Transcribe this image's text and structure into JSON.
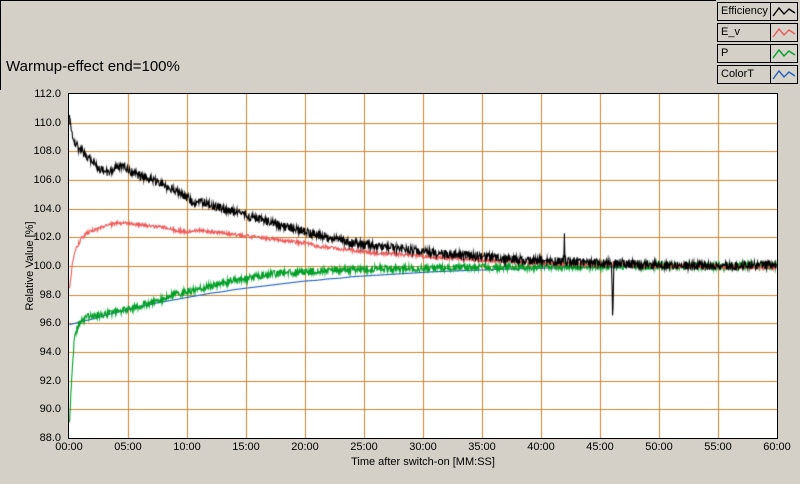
{
  "title": "Warmup-effect end=100%",
  "colors": {
    "background": "#d4d0c8",
    "plot_background": "#ffffff",
    "grid": "#c9862f",
    "axis_text": "#000000",
    "border": "#000000"
  },
  "legend": {
    "items": [
      {
        "label": "Efficiency",
        "color": "#000000"
      },
      {
        "label": "E_v",
        "color": "#ef5a5a"
      },
      {
        "label": "P",
        "color": "#00a028"
      },
      {
        "label": "ColorT",
        "color": "#2060c0"
      }
    ]
  },
  "chart_data": {
    "type": "line",
    "title": "Warmup-effect end=100%",
    "xlabel": "Time after switch-on [MM:SS]",
    "ylabel": "Relative Value [%]",
    "x_unit": "minutes",
    "xlim": [
      0,
      60
    ],
    "ylim": [
      88,
      112
    ],
    "grid": true,
    "legend_position": "top-right",
    "x_ticks": [
      "00:00",
      "05:00",
      "10:00",
      "15:00",
      "20:00",
      "25:00",
      "30:00",
      "35:00",
      "40:00",
      "45:00",
      "50:00",
      "55:00",
      "60:00"
    ],
    "y_ticks": [
      "112.0",
      "110.0",
      "108.0",
      "106.0",
      "104.0",
      "102.0",
      "100.0",
      "98.0",
      "96.0",
      "94.0",
      "92.0",
      "90.0",
      "88.0"
    ],
    "series": [
      {
        "name": "Efficiency",
        "color": "#000000",
        "noise": 0.3,
        "points": [
          [
            0,
            110.3
          ],
          [
            0.2,
            109.3
          ],
          [
            0.5,
            108.6
          ],
          [
            0.8,
            108.2
          ],
          [
            1.2,
            107.9
          ],
          [
            1.7,
            107.5
          ],
          [
            2.2,
            107.0
          ],
          [
            2.7,
            106.7
          ],
          [
            3.2,
            106.6
          ],
          [
            3.7,
            106.8
          ],
          [
            4.2,
            107.0
          ],
          [
            4.7,
            106.9
          ],
          [
            5.2,
            106.6
          ],
          [
            6,
            106.3
          ],
          [
            7,
            106.0
          ],
          [
            8,
            105.7
          ],
          [
            9,
            105.3
          ],
          [
            10,
            104.8
          ],
          [
            10.5,
            104.4
          ],
          [
            11,
            104.5
          ],
          [
            12,
            104.3
          ],
          [
            13,
            104.0
          ],
          [
            14,
            103.8
          ],
          [
            15,
            103.5
          ],
          [
            16,
            103.3
          ],
          [
            17,
            103.1
          ],
          [
            18,
            102.8
          ],
          [
            19,
            102.6
          ],
          [
            20,
            102.4
          ],
          [
            21,
            102.2
          ],
          [
            22,
            102.0
          ],
          [
            23,
            101.8
          ],
          [
            24,
            101.6
          ],
          [
            25,
            101.5
          ],
          [
            26,
            101.4
          ],
          [
            27,
            101.3
          ],
          [
            28,
            101.2
          ],
          [
            29,
            101.1
          ],
          [
            30,
            101.0
          ],
          [
            31,
            100.9
          ],
          [
            32,
            100.85
          ],
          [
            33,
            100.8
          ],
          [
            34,
            100.7
          ],
          [
            35,
            100.65
          ],
          [
            36,
            100.6
          ],
          [
            37,
            100.5
          ],
          [
            38,
            100.45
          ],
          [
            39,
            100.4
          ],
          [
            40,
            100.4
          ],
          [
            41,
            100.35
          ],
          [
            41.95,
            100.3
          ],
          [
            42.0,
            102.5
          ],
          [
            42.05,
            100.3
          ],
          [
            43,
            100.3
          ],
          [
            44,
            100.25
          ],
          [
            45,
            100.2
          ],
          [
            46.0,
            100.2
          ],
          [
            46.1,
            96.3
          ],
          [
            46.2,
            100.2
          ],
          [
            47,
            100.2
          ],
          [
            48,
            100.15
          ],
          [
            49,
            100.1
          ],
          [
            50,
            100.1
          ],
          [
            52,
            100.05
          ],
          [
            54,
            100.0
          ],
          [
            56,
            100.0
          ],
          [
            58,
            100.05
          ],
          [
            60,
            100.1
          ]
        ]
      },
      {
        "name": "E_v",
        "color": "#ef5a5a",
        "noise": 0.12,
        "points": [
          [
            0,
            98.4
          ],
          [
            0.3,
            100.5
          ],
          [
            0.6,
            101.3
          ],
          [
            1,
            101.9
          ],
          [
            1.5,
            102.3
          ],
          [
            2,
            102.5
          ],
          [
            2.5,
            102.6
          ],
          [
            3,
            102.8
          ],
          [
            3.5,
            102.9
          ],
          [
            4,
            103.0
          ],
          [
            5,
            103.0
          ],
          [
            6,
            102.9
          ],
          [
            7,
            102.8
          ],
          [
            8,
            102.7
          ],
          [
            9,
            102.5
          ],
          [
            10,
            102.4
          ],
          [
            11,
            102.5
          ],
          [
            12,
            102.4
          ],
          [
            13,
            102.3
          ],
          [
            14,
            102.2
          ],
          [
            15,
            102.1
          ],
          [
            16,
            102.0
          ],
          [
            17,
            101.9
          ],
          [
            18,
            101.8
          ],
          [
            19,
            101.7
          ],
          [
            20,
            101.6
          ],
          [
            21,
            101.4
          ],
          [
            22,
            101.3
          ],
          [
            23,
            101.2
          ],
          [
            24,
            101.1
          ],
          [
            25,
            101.0
          ],
          [
            26,
            100.9
          ],
          [
            27,
            100.85
          ],
          [
            28,
            100.8
          ],
          [
            29,
            100.75
          ],
          [
            30,
            100.7
          ],
          [
            31,
            100.6
          ],
          [
            32,
            100.55
          ],
          [
            33,
            100.5
          ],
          [
            34,
            100.45
          ],
          [
            35,
            100.4
          ],
          [
            36,
            100.35
          ],
          [
            37,
            100.3
          ],
          [
            38,
            100.3
          ],
          [
            39,
            100.25
          ],
          [
            40,
            100.2
          ],
          [
            42,
            100.15
          ],
          [
            44,
            100.1
          ],
          [
            46,
            100.1
          ],
          [
            48,
            100.05
          ],
          [
            50,
            100.0
          ],
          [
            52,
            100.0
          ],
          [
            54,
            99.95
          ],
          [
            56,
            99.95
          ],
          [
            58,
            99.9
          ],
          [
            60,
            99.9
          ]
        ]
      },
      {
        "name": "P",
        "color": "#00a028",
        "noise": 0.25,
        "points": [
          [
            0,
            89.0
          ],
          [
            0.2,
            92.5
          ],
          [
            0.4,
            94.8
          ],
          [
            0.7,
            95.8
          ],
          [
            1,
            96.2
          ],
          [
            1.5,
            96.4
          ],
          [
            2,
            96.5
          ],
          [
            2.5,
            96.55
          ],
          [
            3,
            96.6
          ],
          [
            3.5,
            96.7
          ],
          [
            4,
            96.8
          ],
          [
            4.5,
            96.9
          ],
          [
            5,
            97.0
          ],
          [
            5.5,
            97.1
          ],
          [
            6,
            97.2
          ],
          [
            7,
            97.5
          ],
          [
            8,
            97.7
          ],
          [
            9,
            98.0
          ],
          [
            10,
            98.2
          ],
          [
            11,
            98.4
          ],
          [
            12,
            98.6
          ],
          [
            13,
            98.8
          ],
          [
            14,
            99.0
          ],
          [
            15,
            99.1
          ],
          [
            16,
            99.3
          ],
          [
            17,
            99.4
          ],
          [
            18,
            99.5
          ],
          [
            19,
            99.55
          ],
          [
            20,
            99.6
          ],
          [
            21,
            99.65
          ],
          [
            22,
            99.7
          ],
          [
            23,
            99.7
          ],
          [
            24,
            99.75
          ],
          [
            25,
            99.75
          ],
          [
            26,
            99.8
          ],
          [
            27,
            99.8
          ],
          [
            28,
            99.82
          ],
          [
            29,
            99.84
          ],
          [
            30,
            99.85
          ],
          [
            32,
            99.88
          ],
          [
            34,
            99.9
          ],
          [
            36,
            99.92
          ],
          [
            38,
            99.94
          ],
          [
            40,
            99.95
          ],
          [
            42,
            99.96
          ],
          [
            44,
            99.97
          ],
          [
            46,
            99.98
          ],
          [
            48,
            99.99
          ],
          [
            50,
            100.0
          ],
          [
            52,
            100.0
          ],
          [
            54,
            100.0
          ],
          [
            56,
            100.0
          ],
          [
            58,
            100.0
          ],
          [
            60,
            100.0
          ]
        ]
      },
      {
        "name": "ColorT",
        "color": "#2060c0",
        "noise": 0,
        "points": [
          [
            0,
            95.9
          ],
          [
            1,
            96.1
          ],
          [
            2,
            96.3
          ],
          [
            3,
            96.55
          ],
          [
            4,
            96.75
          ],
          [
            5,
            96.95
          ],
          [
            6,
            97.15
          ],
          [
            7,
            97.35
          ],
          [
            8,
            97.5
          ],
          [
            9,
            97.65
          ],
          [
            10,
            97.8
          ],
          [
            11,
            97.95
          ],
          [
            12,
            98.1
          ],
          [
            13,
            98.2
          ],
          [
            14,
            98.35
          ],
          [
            15,
            98.45
          ],
          [
            16,
            98.55
          ],
          [
            17,
            98.65
          ],
          [
            18,
            98.75
          ],
          [
            19,
            98.85
          ],
          [
            20,
            98.95
          ],
          [
            21,
            99.0
          ],
          [
            22,
            99.1
          ],
          [
            23,
            99.15
          ],
          [
            24,
            99.25
          ],
          [
            25,
            99.3
          ],
          [
            26,
            99.35
          ],
          [
            27,
            99.4
          ],
          [
            28,
            99.45
          ],
          [
            29,
            99.5
          ],
          [
            30,
            99.55
          ],
          [
            31,
            99.6
          ],
          [
            32,
            99.63
          ],
          [
            33,
            99.66
          ],
          [
            34,
            99.7
          ],
          [
            35,
            99.72
          ],
          [
            36,
            99.75
          ],
          [
            37,
            99.78
          ],
          [
            38,
            99.8
          ],
          [
            39,
            99.82
          ],
          [
            40,
            99.85
          ],
          [
            42,
            99.88
          ],
          [
            44,
            99.9
          ],
          [
            46,
            99.92
          ],
          [
            48,
            99.94
          ],
          [
            50,
            99.95
          ],
          [
            52,
            99.97
          ],
          [
            54,
            99.98
          ],
          [
            56,
            99.99
          ],
          [
            58,
            100.0
          ],
          [
            60,
            100.0
          ]
        ]
      }
    ]
  }
}
